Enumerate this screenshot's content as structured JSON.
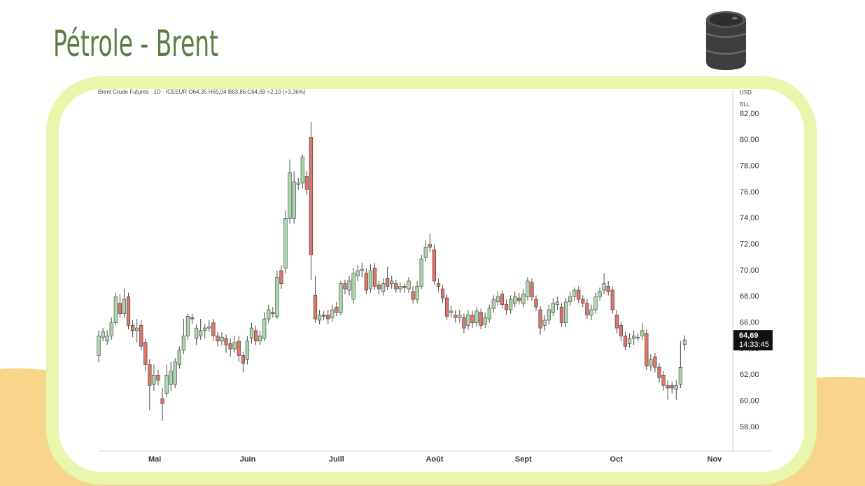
{
  "chart_data": {
    "type": "candlestick",
    "title": "Pétrole - Brent",
    "subtitle": "Brent Crude Futures · 1D · ICEEUR  O64,35  H65,04  B63,86  C64,69  +2,10 (+3,36%)",
    "currency": "USD",
    "unit": "BLL",
    "categories": [
      null,
      null,
      null,
      null,
      null,
      null,
      null,
      null,
      null,
      null,
      null,
      null,
      null,
      null,
      null,
      null,
      null,
      null,
      null,
      null,
      null,
      null,
      null,
      null,
      null,
      null,
      null,
      null,
      null,
      null,
      null,
      null,
      null,
      null,
      null,
      null,
      null,
      null,
      null,
      null,
      null,
      null,
      null,
      null,
      null,
      null,
      null,
      null,
      null,
      null,
      null,
      null,
      null,
      null,
      null,
      null,
      null,
      null,
      null,
      null,
      null,
      null,
      null,
      null,
      null,
      null,
      null,
      null,
      null,
      null,
      null,
      null,
      null,
      null,
      null,
      null,
      null,
      null,
      null,
      null,
      null,
      null,
      null,
      null,
      null,
      null,
      null,
      null,
      null,
      null,
      null,
      null,
      null,
      null,
      null,
      null,
      null,
      null,
      null,
      null,
      null,
      null,
      null,
      null,
      null,
      null,
      null,
      null,
      null,
      null,
      null,
      null,
      null,
      null,
      null,
      null,
      null,
      null,
      null,
      null,
      null,
      null,
      null,
      null,
      null,
      null,
      null,
      null,
      null,
      null,
      null,
      null,
      null,
      null,
      null,
      null,
      null,
      null,
      null
    ],
    "series": [
      {
        "up_color": "#a9d8ab",
        "down_color": "#e07468",
        "open": [
          63.5,
          64.9,
          64.6,
          65.0,
          66.0,
          67.5,
          66.7,
          68.0,
          65.8,
          65.4,
          65.8,
          64.5,
          62.8,
          61.3,
          62.0,
          60.2,
          60.6,
          61.3,
          61.3,
          62.8,
          63.9,
          65.0,
          66.4,
          64.8,
          65.0,
          65.4,
          65.6,
          66.0,
          65.0,
          64.6,
          64.8,
          64.4,
          64.0,
          64.6,
          63.5,
          63.2,
          64.8,
          65.4,
          64.6,
          64.8,
          66.3,
          66.8,
          66.5,
          70.0,
          70.2,
          74.0,
          74.0,
          76.6,
          76.7,
          77.2,
          80.2,
          68.1,
          66.2,
          66.6,
          66.6,
          66.4,
          67.2,
          66.8,
          69.0,
          68.5,
          67.8,
          69.6,
          70.0,
          69.8,
          68.6,
          70.2,
          68.9,
          68.4,
          69.4,
          69.0,
          69.0,
          68.6,
          68.8,
          68.6,
          68.4,
          67.8,
          68.8,
          71.0,
          72.0,
          71.6,
          69.0,
          68.6,
          67.9,
          66.8,
          66.6,
          66.4,
          66.4,
          65.8,
          66.6,
          66.0,
          66.8,
          65.9,
          66.3,
          67.1,
          67.6,
          68.2,
          67.4,
          67.0,
          67.5,
          67.9,
          67.5,
          68.0,
          69.1,
          67.8,
          67.0,
          65.8,
          66.2,
          66.8,
          67.4,
          67.2,
          66.0,
          67.6,
          68.0,
          68.5,
          67.8,
          67.5,
          66.6,
          67.0,
          68.0,
          68.5,
          68.8,
          68.5,
          66.6,
          65.8,
          65.0,
          64.4,
          64.8,
          64.9,
          65.0,
          65.2,
          62.7,
          63.4,
          62.6,
          62.0,
          61.2,
          61.2,
          60.9,
          61.3,
          64.35
        ],
        "high": [
          65.4,
          65.6,
          65.4,
          66.4,
          68.3,
          68.2,
          68.6,
          68.3,
          66.2,
          66.3,
          66.2,
          64.8,
          63.2,
          62.8,
          62.4,
          61.0,
          62.8,
          63.0,
          63.3,
          64.2,
          66.3,
          66.7,
          66.7,
          65.9,
          66.3,
          65.9,
          66.2,
          66.3,
          65.3,
          65.3,
          65.1,
          64.8,
          65.0,
          65.0,
          63.8,
          65.0,
          66.0,
          65.8,
          65.4,
          66.8,
          67.4,
          67.2,
          70.0,
          70.4,
          74.6,
          78.5,
          77.6,
          77.1,
          78.9,
          77.6,
          81.4,
          69.6,
          67.0,
          66.9,
          67.0,
          67.4,
          67.6,
          69.2,
          69.3,
          69.6,
          70.2,
          70.4,
          70.6,
          70.2,
          70.5,
          70.6,
          69.2,
          69.4,
          70.3,
          69.6,
          69.3,
          69.1,
          69.0,
          69.5,
          68.8,
          69.2,
          71.2,
          72.3,
          72.8,
          72.0,
          69.4,
          68.9,
          68.2,
          67.3,
          67.0,
          67.0,
          66.7,
          67.0,
          66.9,
          67.2,
          67.1,
          66.8,
          67.4,
          68.1,
          68.4,
          68.5,
          67.8,
          68.1,
          68.4,
          68.3,
          68.6,
          69.5,
          69.4,
          68.1,
          67.3,
          66.6,
          67.4,
          67.9,
          68.0,
          67.5,
          67.9,
          68.4,
          68.7,
          68.8,
          68.1,
          67.8,
          67.4,
          68.3,
          68.7,
          69.8,
          69.2,
          68.8,
          67.0,
          66.1,
          65.3,
          65.2,
          65.4,
          65.2,
          66.0,
          65.5,
          63.6,
          63.7,
          62.9,
          62.3,
          61.6,
          61.5,
          61.6,
          64.6,
          65.04
        ],
        "low": [
          63.0,
          64.6,
          64.3,
          64.7,
          65.8,
          66.4,
          66.4,
          65.5,
          64.9,
          64.5,
          63.9,
          62.3,
          59.3,
          60.8,
          61.2,
          58.5,
          60.3,
          60.8,
          61.0,
          62.5,
          63.6,
          64.7,
          65.9,
          64.3,
          64.7,
          64.8,
          65.3,
          64.6,
          64.2,
          64.3,
          63.7,
          63.4,
          63.7,
          63.0,
          62.2,
          62.8,
          64.4,
          64.3,
          64.3,
          64.6,
          66.0,
          66.4,
          66.3,
          68.6,
          69.8,
          73.6,
          73.6,
          76.2,
          76.3,
          75.8,
          69.3,
          66.0,
          65.9,
          66.2,
          65.9,
          66.1,
          66.5,
          66.6,
          68.2,
          68.1,
          67.5,
          69.2,
          69.5,
          68.2,
          68.3,
          68.5,
          68.2,
          68.1,
          68.5,
          68.6,
          68.3,
          68.3,
          68.3,
          68.3,
          67.5,
          67.5,
          68.6,
          70.7,
          71.4,
          68.9,
          68.4,
          67.5,
          66.2,
          66.4,
          66.0,
          66.0,
          65.2,
          65.5,
          65.6,
          65.7,
          65.5,
          65.6,
          66.0,
          66.8,
          67.3,
          67.1,
          66.6,
          66.7,
          67.2,
          67.4,
          67.2,
          67.7,
          67.7,
          66.9,
          65.1,
          65.4,
          65.9,
          66.5,
          67.0,
          65.7,
          65.7,
          67.3,
          67.7,
          67.5,
          67.2,
          66.3,
          66.2,
          66.7,
          67.7,
          68.2,
          68.1,
          66.7,
          65.2,
          64.6,
          63.9,
          64.1,
          64.3,
          64.6,
          64.7,
          62.4,
          62.3,
          62.2,
          61.4,
          60.8,
          60.1,
          60.6,
          60.1,
          61.0,
          63.86
        ],
        "close": [
          65.0,
          65.3,
          65.0,
          66.0,
          68.0,
          66.7,
          67.8,
          65.8,
          65.4,
          65.6,
          64.2,
          62.8,
          61.2,
          62.0,
          61.6,
          59.8,
          62.0,
          62.3,
          63.0,
          63.9,
          65.0,
          66.5,
          66.3,
          65.6,
          65.4,
          65.6,
          65.7,
          65.0,
          64.6,
          64.9,
          64.3,
          64.0,
          64.5,
          63.5,
          62.9,
          64.6,
          65.6,
          64.6,
          65.0,
          66.3,
          67.0,
          66.7,
          69.5,
          69.0,
          74.0,
          77.5,
          76.8,
          76.7,
          78.7,
          76.2,
          71.2,
          66.3,
          66.6,
          66.5,
          66.3,
          67.0,
          66.8,
          69.0,
          68.6,
          69.2,
          69.8,
          70.0,
          70.1,
          68.5,
          70.0,
          68.8,
          68.6,
          69.0,
          68.8,
          69.2,
          68.6,
          68.8,
          68.7,
          69.2,
          67.8,
          68.8,
          70.9,
          71.8,
          71.8,
          69.2,
          68.8,
          67.9,
          66.5,
          66.9,
          66.4,
          66.6,
          65.6,
          66.6,
          66.0,
          66.9,
          65.8,
          66.4,
          67.1,
          67.8,
          68.0,
          67.4,
          67.0,
          67.8,
          68.0,
          67.7,
          68.2,
          69.2,
          68.0,
          67.2,
          65.6,
          66.2,
          67.0,
          67.5,
          67.6,
          66.0,
          67.6,
          68.0,
          68.5,
          67.8,
          67.5,
          66.6,
          67.0,
          68.0,
          68.4,
          69.0,
          68.4,
          67.0,
          65.6,
          65.0,
          64.2,
          64.8,
          65.0,
          64.9,
          65.4,
          62.7,
          63.2,
          62.6,
          61.8,
          61.2,
          61.0,
          61.0,
          61.2,
          62.59,
          64.69
        ]
      }
    ],
    "xlim": [
      -0.5,
      149.3
    ],
    "xticks": [
      {
        "value": 13.2,
        "label": "Mai"
      },
      {
        "value": 35.1,
        "label": "Juin"
      },
      {
        "value": 56.0,
        "label": "Juill"
      },
      {
        "value": 79.1,
        "label": "Août"
      },
      {
        "value": 100.0,
        "label": "Sept"
      },
      {
        "value": 121.9,
        "label": "Oct"
      },
      {
        "value": 145.0,
        "label": "Nov"
      }
    ],
    "ylim": [
      56.18,
      83.87
    ],
    "yticks": [
      {
        "value": 58,
        "label": "58,00"
      },
      {
        "value": 60,
        "label": "60,00"
      },
      {
        "value": 62,
        "label": "62,00"
      },
      {
        "value": 64,
        "label": "64,00"
      },
      {
        "value": 66,
        "label": "66,00"
      },
      {
        "value": 68,
        "label": "68,00"
      },
      {
        "value": 70,
        "label": "70,00"
      },
      {
        "value": 72,
        "label": "72,00"
      },
      {
        "value": 74,
        "label": "74,00"
      },
      {
        "value": 76,
        "label": "76,00"
      },
      {
        "value": 78,
        "label": "78,00"
      },
      {
        "value": 80,
        "label": "80,00"
      },
      {
        "value": 82,
        "label": "82,00"
      }
    ],
    "grid": false,
    "last_price": {
      "value": 64.69,
      "label": "64,69"
    },
    "countdown": "14:33:45"
  }
}
